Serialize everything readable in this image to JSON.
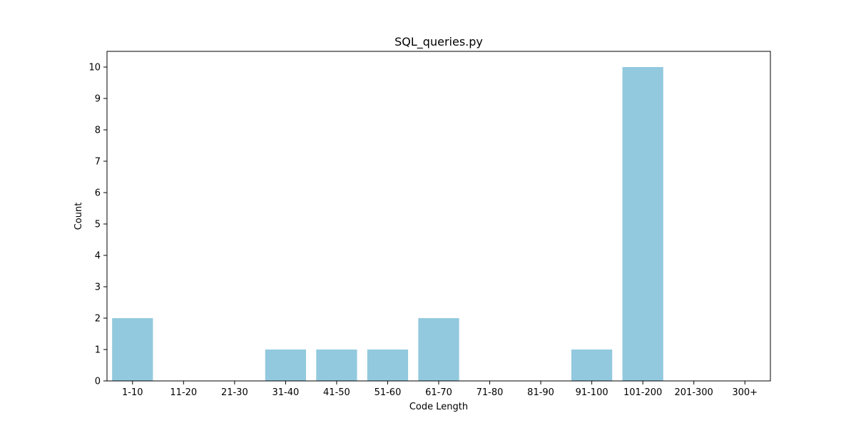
{
  "chart_data": {
    "type": "bar",
    "title": "SQL_queries.py",
    "xlabel": "Code Length",
    "ylabel": "Count",
    "categories": [
      "1-10",
      "11-20",
      "21-30",
      "31-40",
      "41-50",
      "51-60",
      "61-70",
      "71-80",
      "81-90",
      "91-100",
      "101-200",
      "201-300",
      "300+"
    ],
    "values": [
      2,
      0,
      0,
      1,
      1,
      1,
      2,
      0,
      0,
      1,
      10,
      0,
      0
    ],
    "ylim": [
      0,
      10.5
    ],
    "yticks": [
      "0",
      "1",
      "2",
      "3",
      "4",
      "5",
      "6",
      "7",
      "8",
      "9",
      "10"
    ],
    "bar_color": "#92c9de",
    "grid": false,
    "legend": "none"
  }
}
